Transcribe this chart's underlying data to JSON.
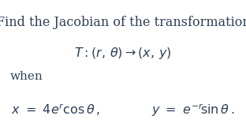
{
  "background_color": "#ffffff",
  "title_text": "Find the Jacobian of the transformation",
  "title_color": "#2e4057",
  "title_fontsize": 11.5,
  "line2_text": "$T : (r,\\, \\theta) \\rightarrow (x,\\, y)$",
  "line2_color": "#2e4057",
  "line2_fontsize": 11.5,
  "when_text": "when",
  "when_color": "#2e4057",
  "when_fontsize": 11,
  "eq_text": "$x \\ = \\ 4e^{r}\\cos\\theta\\,,  \\qquad\\qquad  y \\ = \\ e^{-r}\\!\\sin\\theta\\,.$",
  "eq_color": "#2e4057",
  "eq_fontsize": 11.5,
  "figwidth": 3.12,
  "figheight": 1.56,
  "dpi": 100
}
